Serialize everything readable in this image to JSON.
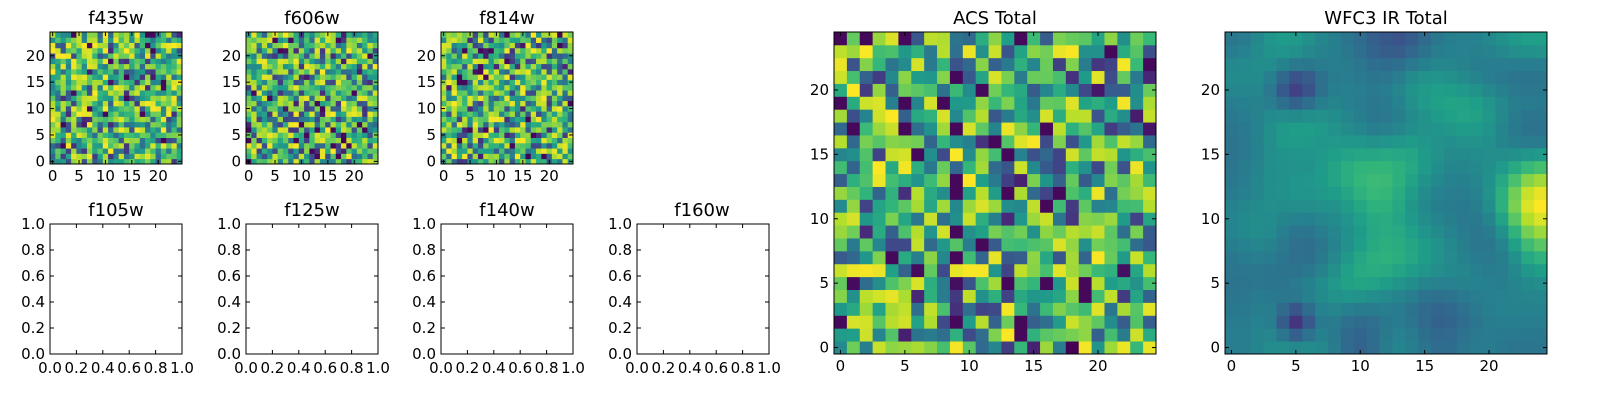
{
  "chart_data": [
    {
      "id": "f435w",
      "type": "heatmap",
      "title": "f435w",
      "shape": [
        25,
        25
      ],
      "xticks": [
        "0",
        "5",
        "10",
        "15",
        "20"
      ],
      "yticks": [
        "0",
        "5",
        "10",
        "15",
        "20"
      ],
      "colormap": "viridis",
      "seed": 11,
      "pattern": "noise",
      "vmin": 0.0,
      "vmax": 1.0
    },
    {
      "id": "f606w",
      "type": "heatmap",
      "title": "f606w",
      "shape": [
        25,
        25
      ],
      "xticks": [
        "0",
        "5",
        "10",
        "15",
        "20"
      ],
      "yticks": [
        "0",
        "5",
        "10",
        "15",
        "20"
      ],
      "colormap": "viridis",
      "seed": 23,
      "pattern": "noise",
      "vmin": 0.0,
      "vmax": 1.0
    },
    {
      "id": "f814w",
      "type": "heatmap",
      "title": "f814w",
      "shape": [
        25,
        25
      ],
      "xticks": [
        "0",
        "5",
        "10",
        "15",
        "20"
      ],
      "yticks": [
        "0",
        "5",
        "10",
        "15",
        "20"
      ],
      "colormap": "viridis",
      "seed": 37,
      "pattern": "noise",
      "vmin": 0.0,
      "vmax": 1.0
    },
    {
      "id": "f105w",
      "type": "empty",
      "title": "f105w",
      "xlim": [
        0,
        1
      ],
      "ylim": [
        0,
        1
      ],
      "xticks": [
        "0.0",
        "0.2",
        "0.4",
        "0.6",
        "0.8",
        "1.0"
      ],
      "yticks": [
        "0.0",
        "0.2",
        "0.4",
        "0.6",
        "0.8",
        "1.0"
      ]
    },
    {
      "id": "f125w",
      "type": "empty",
      "title": "f125w",
      "xlim": [
        0,
        1
      ],
      "ylim": [
        0,
        1
      ],
      "xticks": [
        "0.0",
        "0.2",
        "0.4",
        "0.6",
        "0.8",
        "1.0"
      ],
      "yticks": [
        "0.0",
        "0.2",
        "0.4",
        "0.6",
        "0.8",
        "1.0"
      ]
    },
    {
      "id": "f140w",
      "type": "empty",
      "title": "f140w",
      "xlim": [
        0,
        1
      ],
      "ylim": [
        0,
        1
      ],
      "xticks": [
        "0.0",
        "0.2",
        "0.4",
        "0.6",
        "0.8",
        "1.0"
      ],
      "yticks": [
        "0.0",
        "0.2",
        "0.4",
        "0.6",
        "0.8",
        "1.0"
      ]
    },
    {
      "id": "f160w",
      "type": "empty",
      "title": "f160w",
      "xlim": [
        0,
        1
      ],
      "ylim": [
        0,
        1
      ],
      "xticks": [
        "0.0",
        "0.2",
        "0.4",
        "0.6",
        "0.8",
        "1.0"
      ],
      "yticks": [
        "0.0",
        "0.2",
        "0.4",
        "0.6",
        "0.8",
        "1.0"
      ]
    },
    {
      "id": "acs_total",
      "type": "heatmap",
      "title": "ACS Total",
      "shape": [
        25,
        25
      ],
      "xticks": [
        "0",
        "5",
        "10",
        "15",
        "20"
      ],
      "yticks": [
        "0",
        "5",
        "10",
        "15",
        "20"
      ],
      "colormap": "viridis",
      "seed": 59,
      "pattern": "acs",
      "vmin": 0.0,
      "vmax": 1.0
    },
    {
      "id": "wfc3_ir_total",
      "type": "heatmap",
      "title": "WFC3 IR Total",
      "shape": [
        25,
        25
      ],
      "xticks": [
        "0",
        "5",
        "10",
        "15",
        "20"
      ],
      "yticks": [
        "0",
        "5",
        "10",
        "15",
        "20"
      ],
      "colormap": "viridis",
      "seed": 71,
      "pattern": "smooth",
      "vmin": 0.0,
      "vmax": 1.0
    }
  ]
}
